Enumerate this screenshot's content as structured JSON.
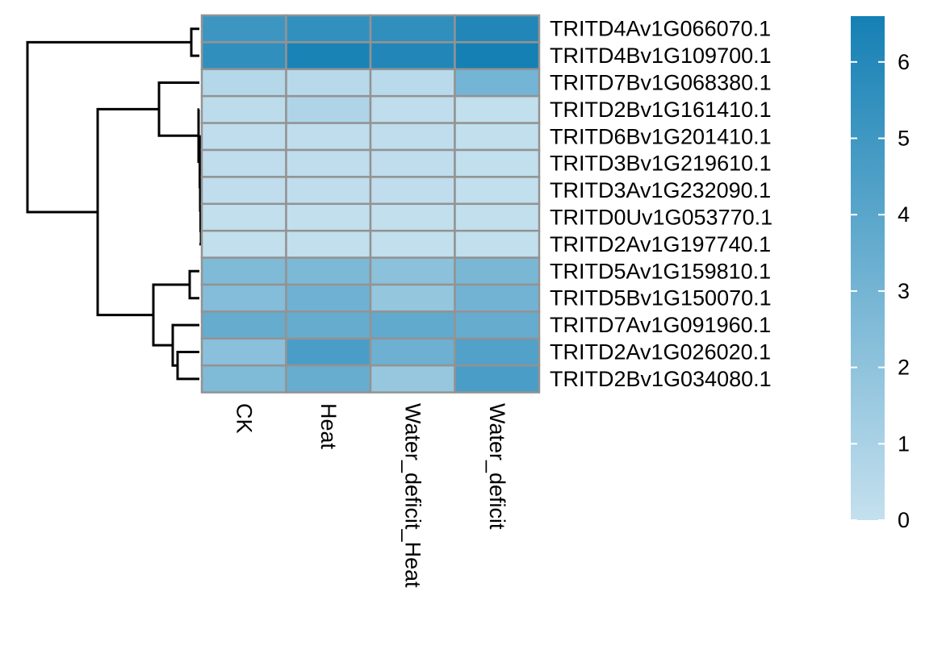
{
  "chart_data": {
    "type": "heatmap",
    "columns": [
      "CK",
      "Heat",
      "Water_deficit_Heat",
      "Water_deficit"
    ],
    "rows": [
      "TRITD4Av1G066070.1",
      "TRITD4Bv1G109700.1",
      "TRITD7Bv1G068380.1",
      "TRITD2Bv1G161410.1",
      "TRITD6Bv1G201410.1",
      "TRITD3Bv1G219610.1",
      "TRITD3Av1G232090.1",
      "TRITD0Uv1G053770.1",
      "TRITD2Av1G197740.1",
      "TRITD5Av1G159810.1",
      "TRITD5Bv1G150070.1",
      "TRITD7Av1G091960.1",
      "TRITD2Av1G026020.1",
      "TRITD2Bv1G034080.1"
    ],
    "values": [
      [
        5.1,
        5.5,
        5.6,
        6.1
      ],
      [
        5.6,
        6.4,
        6.1,
        6.6
      ],
      [
        0.6,
        0.5,
        0.4,
        3.0
      ],
      [
        0.3,
        0.8,
        0.2,
        0.1
      ],
      [
        0.2,
        0.2,
        0.2,
        0.1
      ],
      [
        0.2,
        0.2,
        0.2,
        0.1
      ],
      [
        0.2,
        0.2,
        0.2,
        0.1
      ],
      [
        0.1,
        0.1,
        0.1,
        0.1
      ],
      [
        0.1,
        0.1,
        0.1,
        0.1
      ],
      [
        2.6,
        2.7,
        2.1,
        2.8
      ],
      [
        2.4,
        3.2,
        1.8,
        3.1
      ],
      [
        3.6,
        3.6,
        3.7,
        3.6
      ],
      [
        2.2,
        4.6,
        3.3,
        4.3
      ],
      [
        2.6,
        3.5,
        1.7,
        4.6
      ]
    ],
    "colorbar": {
      "min": 0,
      "max": 6.6,
      "ticks": [
        "0",
        "1",
        "2",
        "3",
        "4",
        "5",
        "6"
      ],
      "low_color": "#c4e0ee",
      "high_color": "#1580b4"
    },
    "cell_border_color": "#939393",
    "row_dendrogram": true,
    "column_dendrogram": false
  }
}
